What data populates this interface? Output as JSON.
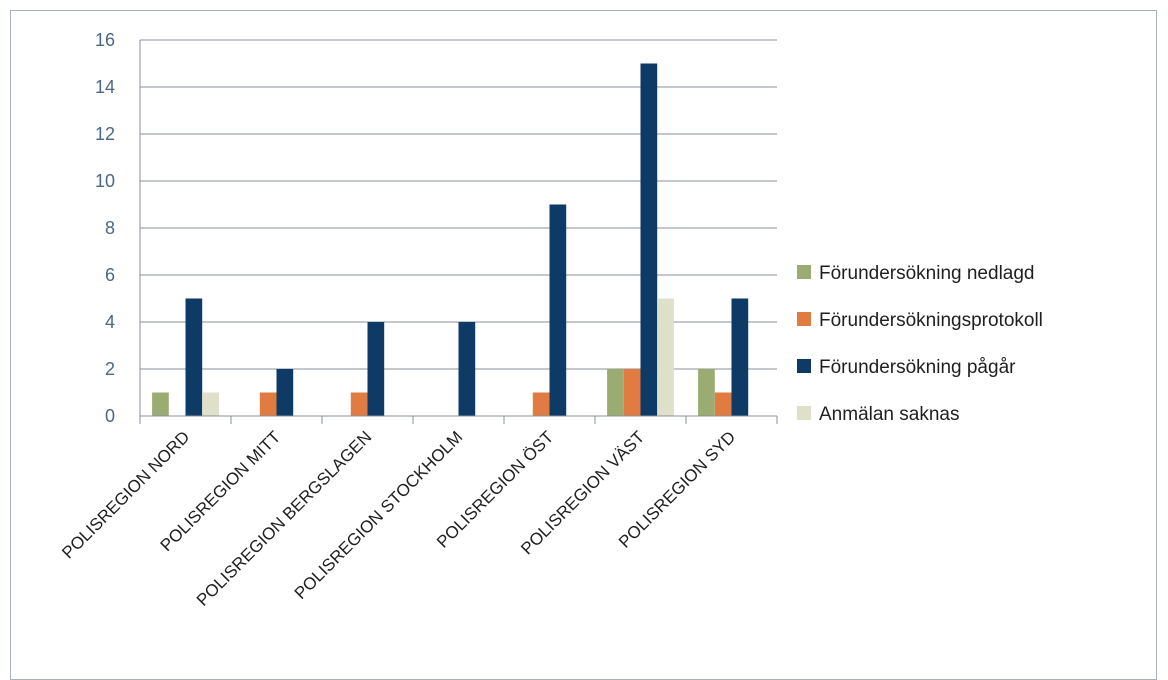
{
  "chart_data": {
    "type": "bar",
    "title": "",
    "xlabel": "",
    "ylabel": "",
    "ylim": [
      0,
      16
    ],
    "yticks": [
      0,
      2,
      4,
      6,
      8,
      10,
      12,
      14,
      16
    ],
    "grid": true,
    "legend_position": "right",
    "categories": [
      "POLISREGION NORD",
      "POLISREGION MITT",
      "POLISREGION BERGSLAGEN",
      "POLISREGION STOCKHOLM",
      "POLISREGION ÖST",
      "POLISREGION VÄST",
      "POLISREGION SYD"
    ],
    "series": [
      {
        "name": "Förundersökning nedlagd",
        "color": "#9bac72",
        "values": [
          1,
          0,
          0,
          0,
          0,
          2,
          2
        ]
      },
      {
        "name": "Förundersökningsprotokoll",
        "color": "#e07b42",
        "values": [
          0,
          1,
          1,
          0,
          1,
          2,
          1
        ]
      },
      {
        "name": "Förundersökning pågår",
        "color": "#0e3a66",
        "values": [
          5,
          2,
          4,
          4,
          9,
          15,
          5
        ]
      },
      {
        "name": "Anmälan saknas",
        "color": "#dfe0ca",
        "values": [
          1,
          0,
          0,
          0,
          0,
          5,
          0
        ]
      }
    ]
  }
}
